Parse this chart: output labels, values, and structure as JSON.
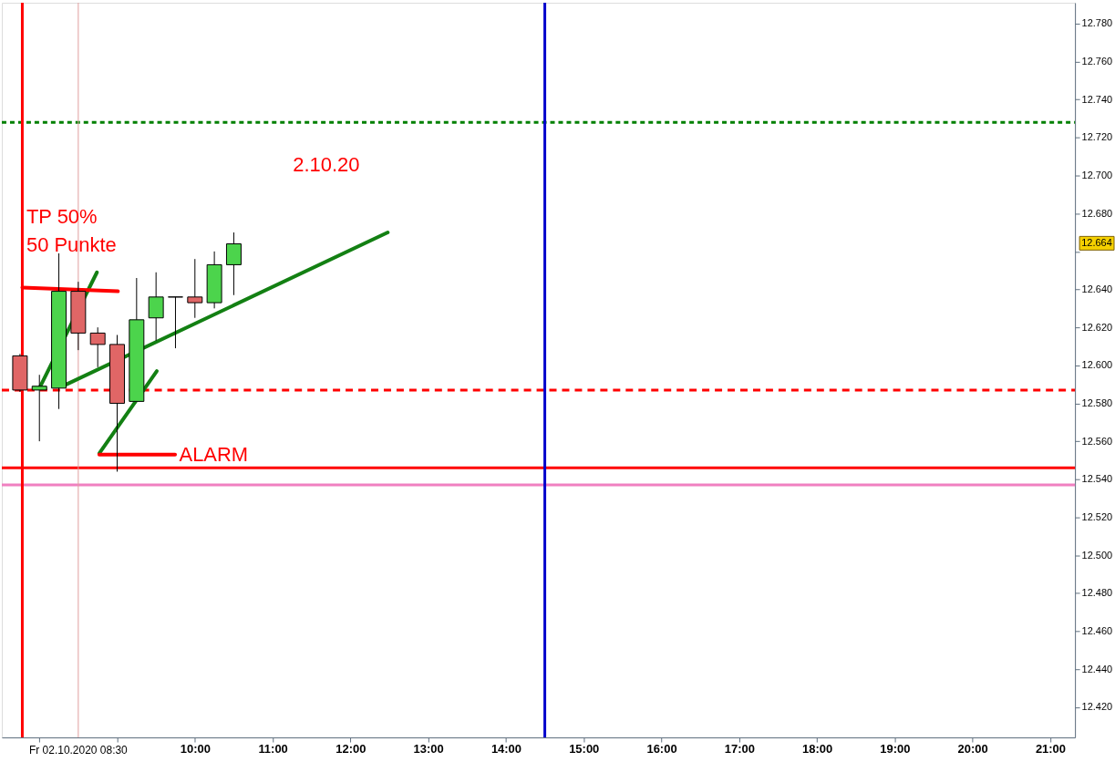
{
  "chart_data": {
    "type": "candlestick",
    "title": "2.10.20",
    "x": [
      7.75,
      8.0,
      8.25,
      8.5,
      8.75,
      9.0,
      9.25,
      9.5,
      9.75,
      10.0,
      10.25,
      10.5
    ],
    "ohlc": [
      [
        12.605,
        12.606,
        12.586,
        12.587
      ],
      [
        12.587,
        12.595,
        12.56,
        12.589
      ],
      [
        12.588,
        12.659,
        12.577,
        12.639
      ],
      [
        12.639,
        12.644,
        12.608,
        12.617
      ],
      [
        12.617,
        12.62,
        12.599,
        12.611
      ],
      [
        12.611,
        12.616,
        12.544,
        12.58
      ],
      [
        12.581,
        12.646,
        12.581,
        12.624
      ],
      [
        12.625,
        12.649,
        12.613,
        12.636
      ],
      [
        12.636,
        12.636,
        12.609,
        12.636
      ],
      [
        12.636,
        12.656,
        12.625,
        12.633
      ],
      [
        12.633,
        12.66,
        12.63,
        12.653
      ],
      [
        12.653,
        12.67,
        12.637,
        12.664
      ]
    ],
    "colors": [
      "#e06666",
      "#4cd44c",
      "#4cd44c",
      "#e06666",
      "#e06666",
      "#e06666",
      "#4cd44c",
      "#4cd44c",
      "#000000",
      "#e06666",
      "#4cd44c",
      "#4cd44c"
    ],
    "series": [
      {
        "type": "line",
        "color": "#138013",
        "x": [
          8.0,
          8.74
        ],
        "values": [
          12.588,
          12.649
        ]
      },
      {
        "type": "line",
        "color": "#138013",
        "x": [
          8.35,
          12.48
        ],
        "values": [
          12.59,
          12.67
        ]
      },
      {
        "type": "line",
        "color": "#138013",
        "x": [
          8.77,
          9.51
        ],
        "values": [
          12.5536,
          12.597
        ]
      },
      {
        "type": "line",
        "color": "#ff0000",
        "x": [
          7.78,
          9.01
        ],
        "values": [
          12.641,
          12.639
        ]
      },
      {
        "type": "line",
        "color": "#ff0000",
        "x": [
          8.77,
          9.745
        ],
        "values": [
          12.553,
          12.553
        ]
      }
    ],
    "ref_lines": [
      {
        "axis": "y",
        "value": 12.728,
        "color": "#008000",
        "line_style": "dotted"
      },
      {
        "axis": "y",
        "value": 12.587,
        "color": "#ff0000",
        "line_style": "dashed"
      },
      {
        "axis": "y",
        "value": 12.546,
        "color": "#ff0000",
        "line_style": "solid"
      },
      {
        "axis": "y",
        "value": 12.537,
        "color": "#f080c0",
        "line_style": "solid"
      },
      {
        "axis": "x",
        "value": 7.78,
        "color": "#ff0000",
        "line_style": "solid"
      },
      {
        "axis": "x",
        "value": 14.5,
        "color": "#0000cc",
        "line_style": "solid"
      },
      {
        "axis": "x",
        "value": 8.5,
        "color": "#e0a0a0",
        "line_style": "solid",
        "label": "Fr 02.10.2020 08:30"
      }
    ],
    "annotations": [
      "TP 50%",
      "50 Punkte",
      "ALARM",
      "12.664"
    ],
    "xlim": [
      7.575,
      21.26
    ],
    "ylim": [
      12.404,
      12.791
    ],
    "xticks": [
      {
        "value": 8,
        "label": null
      },
      {
        "value": 9,
        "label": null
      },
      {
        "value": 10,
        "label": "10:00"
      },
      {
        "value": 11,
        "label": "11:00"
      },
      {
        "value": 12,
        "label": "12:00"
      },
      {
        "value": 13,
        "label": "13:00"
      },
      {
        "value": 14,
        "label": "14:00"
      },
      {
        "value": 15,
        "label": "15:00"
      },
      {
        "value": 16,
        "label": "16:00"
      },
      {
        "value": 17,
        "label": "17:00"
      },
      {
        "value": 18,
        "label": "18:00"
      },
      {
        "value": 19,
        "label": "19:00"
      },
      {
        "value": 20,
        "label": "20:00"
      },
      {
        "value": 21,
        "label": "21:00"
      }
    ],
    "yticks": [
      {
        "value": 12.42,
        "label": "12.420"
      },
      {
        "value": 12.44,
        "label": "12.440"
      },
      {
        "value": 12.46,
        "label": "12.460"
      },
      {
        "value": 12.48,
        "label": "12.480"
      },
      {
        "value": 12.5,
        "label": "12.500"
      },
      {
        "value": 12.52,
        "label": "12.520"
      },
      {
        "value": 12.54,
        "label": "12.540"
      },
      {
        "value": 12.56,
        "label": "12.560"
      },
      {
        "value": 12.58,
        "label": "12.580"
      },
      {
        "value": 12.6,
        "label": "12.600"
      },
      {
        "value": 12.62,
        "label": "12.620"
      },
      {
        "value": 12.64,
        "label": "12.640"
      },
      {
        "value": 12.66,
        "label": null
      },
      {
        "value": 12.68,
        "label": "12.680"
      },
      {
        "value": 12.7,
        "label": "12.700"
      },
      {
        "value": 12.72,
        "label": "12.720"
      },
      {
        "value": 12.74,
        "label": "12.740"
      },
      {
        "value": 12.76,
        "label": "12.760"
      },
      {
        "value": 12.78,
        "label": "12.780"
      }
    ]
  }
}
